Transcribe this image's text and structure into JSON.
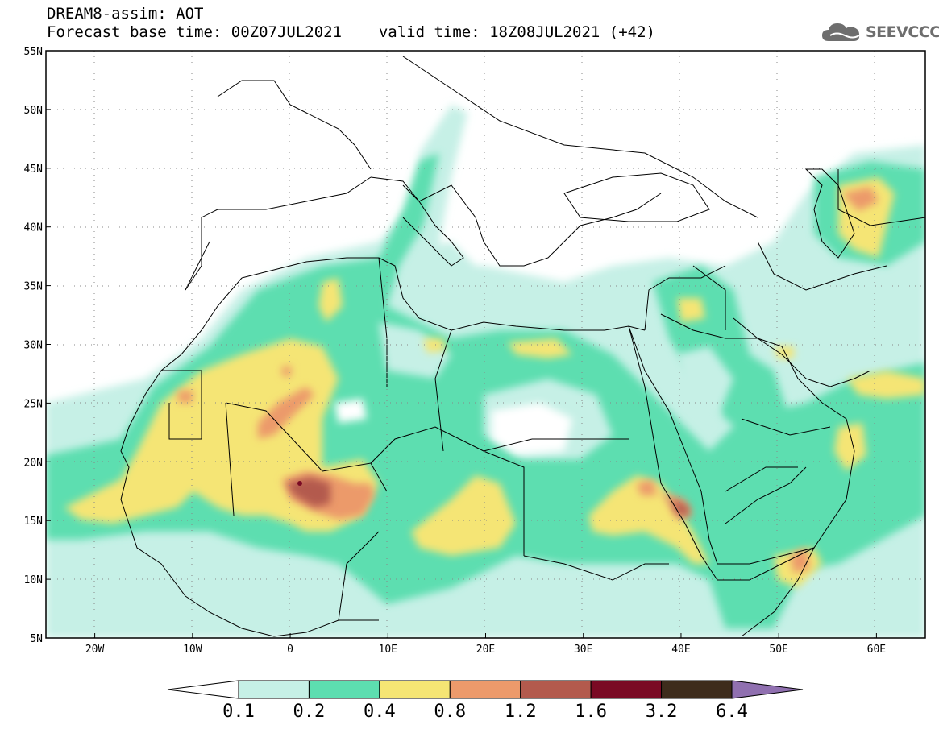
{
  "header": {
    "line1": "DREAM8-assim: AOT",
    "base_time": "Forecast base time: 00Z07JUL2021",
    "valid_time": "valid time: 18Z08JUL2021 (+42)",
    "logo_text": "SEEVCCC",
    "logo_icon": "cloud-icon"
  },
  "map": {
    "lon_range": [
      -25,
      65
    ],
    "lat_range": [
      5,
      55
    ],
    "lon_ticks": [
      "20W",
      "10W",
      "0",
      "10E",
      "20E",
      "30E",
      "40E",
      "50E",
      "60E"
    ],
    "lat_ticks": [
      "5N",
      "10N",
      "15N",
      "20N",
      "25N",
      "30N",
      "35N",
      "40N",
      "45N",
      "50N",
      "55N"
    ],
    "grid": "dotted"
  },
  "colorbar": {
    "bins": [
      {
        "color": "#ffffff"
      },
      {
        "color": "#c6f0e6"
      },
      {
        "color": "#5ddeb0"
      },
      {
        "color": "#f5e574"
      },
      {
        "color": "#ec9a6b"
      },
      {
        "color": "#b35a4d"
      },
      {
        "color": "#7a0a24"
      },
      {
        "color": "#3e2c1c"
      },
      {
        "color": "#9070b0"
      }
    ],
    "labels": [
      "0.1",
      "0.2",
      "0.4",
      "0.8",
      "1.2",
      "1.6",
      "3.2",
      "6.4"
    ]
  }
}
